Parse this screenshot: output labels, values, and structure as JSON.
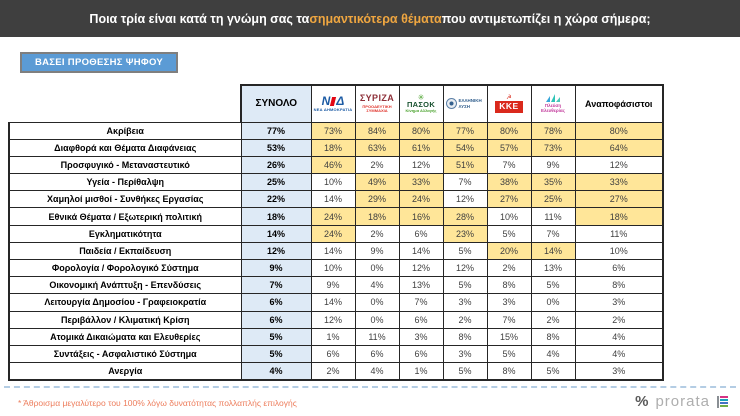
{
  "question": {
    "prefix": "Ποια τρία είναι κατά τη γνώμη σας τα ",
    "highlight": "σημαντικότερα θέματα",
    "suffix": " που αντιμετωπίζει η χώρα σήμερα;"
  },
  "filter": {
    "label": "ΒΑΣΕΙ ΠΡΟΘΕΣΗΣ ΨΗΦΟΥ"
  },
  "table": {
    "total_header": "ΣΥΝΟΛΟ",
    "undecided_header": "Αναποφάσιστοι",
    "parties": [
      {
        "name": "ΝΔ",
        "subtext": "ΝΕΑ ΔΗΜΟΚΡΑΤΙΑ"
      },
      {
        "name": "ΣΥΡΙΖΑ",
        "subtext": "ΠΡΟΟΔΕΥΤΙΚΗ ΣΥΜΜΑΧΙΑ"
      },
      {
        "name": "ΠΑΣΟΚ",
        "subtext": "Κίνημα Αλλαγής"
      },
      {
        "name": "ΕΛΛΗΝΙΚΗ ΛΥΣΗ",
        "subtext": ""
      },
      {
        "name": "ΚΚΕ",
        "subtext": ""
      },
      {
        "name": "Πλεύση Ελευθερίας",
        "subtext": ""
      }
    ]
  },
  "chart_data": {
    "type": "table",
    "title": "Ποια τρία είναι κατά τη γνώμη σας τα σημαντικότερα θέματα που αντιμετωπίζει η χώρα σήμερα;",
    "unit": "%",
    "categories": [
      "Ακρίβεια",
      "Διαφθορά και Θέματα Διαφάνειας",
      "Προσφυγικό - Μεταναστευτικό",
      "Υγεία - Περίθαλψη",
      "Χαμηλοί μισθοί - Συνθήκες Εργασίας",
      "Εθνικά Θέματα / Εξωτερική πολιτική",
      "Εγκληματικότητα",
      "Παιδεία / Εκπαίδευση",
      "Φορολογία / Φορολογικό Σύστημα",
      "Οικονομική Ανάπτυξη - Επενδύσεις",
      "Λειτουργία Δημοσίου - Γραφειοκρατία",
      "Περιβάλλον / Κλιματική Κρίση",
      "Ατομικά Δικαιώματα και Ελευθερίες",
      "Συντάξεις - Ασφαλιστικό Σύστημα",
      "Ανεργία"
    ],
    "series": [
      {
        "name": "ΣΥΝΟΛΟ",
        "values": [
          77,
          53,
          26,
          25,
          22,
          18,
          14,
          12,
          9,
          7,
          6,
          6,
          5,
          5,
          4
        ]
      },
      {
        "name": "ΝΔ",
        "values": [
          73,
          18,
          46,
          10,
          14,
          24,
          24,
          14,
          10,
          9,
          14,
          12,
          1,
          6,
          2
        ]
      },
      {
        "name": "ΣΥΡΙΖΑ",
        "values": [
          84,
          63,
          2,
          49,
          29,
          18,
          2,
          9,
          0,
          4,
          0,
          0,
          11,
          6,
          4
        ]
      },
      {
        "name": "ΠΑΣΟΚ",
        "values": [
          80,
          61,
          12,
          33,
          24,
          16,
          6,
          14,
          12,
          13,
          7,
          6,
          3,
          6,
          1
        ]
      },
      {
        "name": "ΕΛΛΗΝΙΚΗ ΛΥΣΗ",
        "values": [
          77,
          54,
          51,
          7,
          12,
          28,
          23,
          5,
          12,
          5,
          3,
          2,
          8,
          3,
          5
        ]
      },
      {
        "name": "ΚΚΕ",
        "values": [
          80,
          57,
          7,
          38,
          27,
          10,
          5,
          20,
          2,
          8,
          3,
          7,
          15,
          5,
          8
        ]
      },
      {
        "name": "Πλεύση Ελευθερίας",
        "values": [
          78,
          73,
          9,
          35,
          25,
          11,
          7,
          14,
          13,
          5,
          0,
          2,
          8,
          4,
          5
        ]
      },
      {
        "name": "Αναποφάσιστοι",
        "values": [
          80,
          64,
          12,
          33,
          27,
          18,
          11,
          10,
          6,
          8,
          3,
          2,
          4,
          4,
          3
        ]
      }
    ],
    "legend_position": "top",
    "grid": true
  },
  "footer": {
    "note": "* Άθροισμα μεγαλύτερο του 100% λόγω δυνατότητας πολλαπλής επιλογής",
    "brand_symbol": "%",
    "brand": "prorata"
  },
  "colors": {
    "header_bg": "#3F3F3F",
    "accent_gold": "#EFA640",
    "button_blue": "#5B9BD5",
    "total_col_bg": "#DEEAF6",
    "highlight": "#FFE699",
    "footnote": "#ED7D5C"
  }
}
